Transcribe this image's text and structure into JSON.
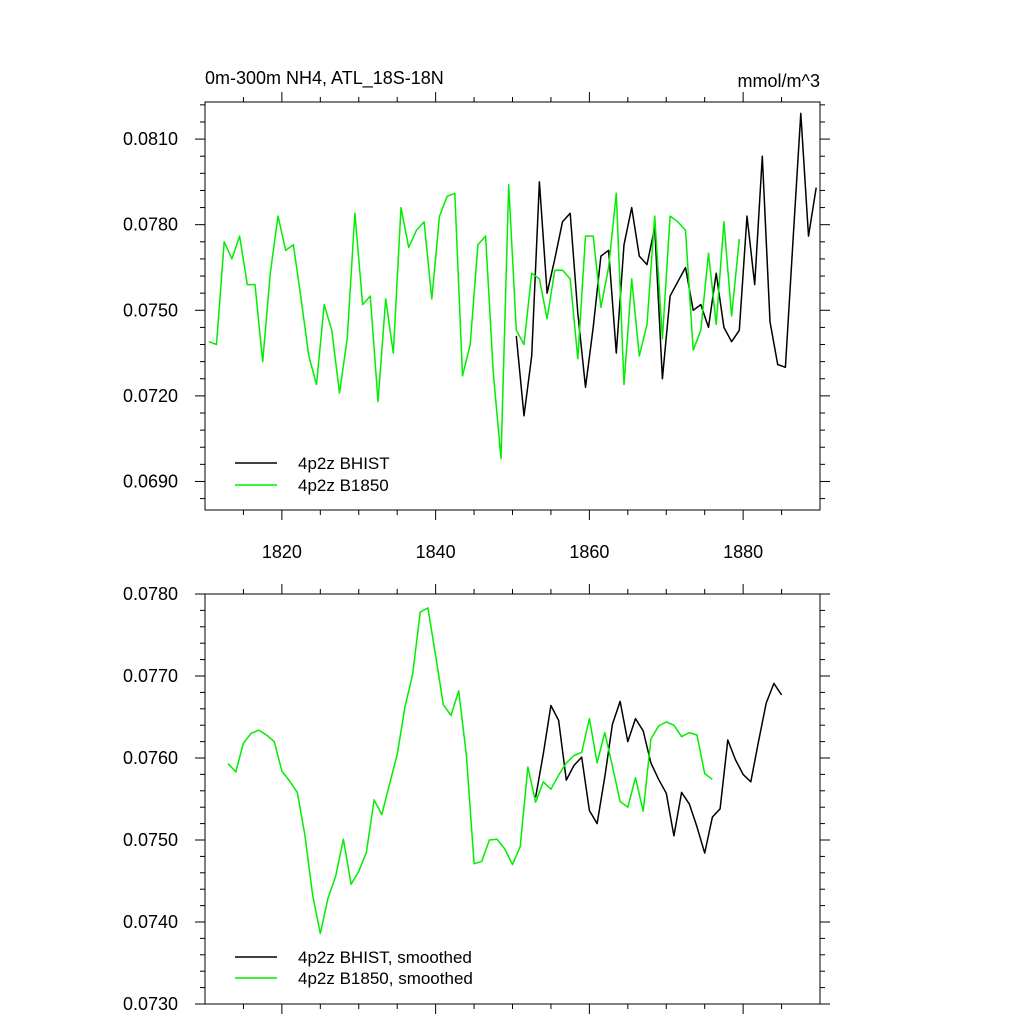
{
  "colors": {
    "bhist": "#000000",
    "b1850": "#00ee00"
  },
  "chart_data": [
    {
      "type": "line",
      "title": "0m-300m NH4, ATL_18S-18N",
      "units": "mmol/m^3",
      "xlim": [
        1810,
        1890
      ],
      "ylim": [
        0.068,
        0.0823
      ],
      "x_ticks": [
        1820,
        1840,
        1860,
        1880
      ],
      "y_ticks": [
        0.069,
        0.072,
        0.075,
        0.078,
        0.081
      ],
      "x_tick_labels": [
        "1820",
        "1840",
        "1860",
        "1880"
      ],
      "y_tick_labels": [
        "0.0690",
        "0.0720",
        "0.0750",
        "0.0780",
        "0.0810"
      ],
      "legend_position": "bottom-left",
      "series": [
        {
          "name": "4p2z BHIST",
          "color": "#000000",
          "x_start": 1850.5,
          "values": [
            0.0741,
            0.0713,
            0.0734,
            0.0795,
            0.0756,
            0.0768,
            0.0781,
            0.0784,
            0.0749,
            0.0723,
            0.0744,
            0.0769,
            0.0771,
            0.0735,
            0.0773,
            0.0786,
            0.0769,
            0.0766,
            0.0779,
            0.0726,
            0.0755,
            0.076,
            0.0765,
            0.075,
            0.0752,
            0.0744,
            0.0763,
            0.0744,
            0.0739,
            0.0743,
            0.0783,
            0.0759,
            0.0804,
            0.0746,
            0.0731,
            0.073,
            0.0775,
            0.0819,
            0.0776,
            0.0793
          ]
        },
        {
          "name": "4p2z B1850",
          "color": "#00ee00",
          "x_start": 1810.5,
          "values": [
            0.0739,
            0.0738,
            0.0774,
            0.0768,
            0.0776,
            0.0759,
            0.0759,
            0.0732,
            0.0763,
            0.0783,
            0.0771,
            0.0773,
            0.0754,
            0.0734,
            0.0724,
            0.0752,
            0.0743,
            0.0721,
            0.074,
            0.0784,
            0.0752,
            0.0755,
            0.0718,
            0.0754,
            0.0735,
            0.0786,
            0.0772,
            0.0778,
            0.0781,
            0.0754,
            0.0783,
            0.079,
            0.0791,
            0.0727,
            0.0738,
            0.0773,
            0.0776,
            0.0728,
            0.0698,
            0.0794,
            0.0743,
            0.0738,
            0.0763,
            0.0761,
            0.0747,
            0.0764,
            0.0764,
            0.0761,
            0.0733,
            0.0776,
            0.0776,
            0.0751,
            0.0765,
            0.0791,
            0.0724,
            0.0761,
            0.0734,
            0.0745,
            0.0783,
            0.074,
            0.0783,
            0.0781,
            0.0778,
            0.0736,
            0.0743,
            0.077,
            0.0745,
            0.0781,
            0.0748,
            0.0775
          ]
        }
      ]
    },
    {
      "type": "line",
      "title": "",
      "xlim": [
        1810,
        1890
      ],
      "ylim": [
        0.073,
        0.078
      ],
      "x_ticks": [
        1820,
        1840,
        1860,
        1880
      ],
      "y_ticks": [
        0.073,
        0.074,
        0.075,
        0.076,
        0.077,
        0.078
      ],
      "y_tick_labels": [
        "0.0730",
        "0.0740",
        "0.0750",
        "0.0760",
        "0.0770",
        "0.0780"
      ],
      "legend_position": "bottom-left",
      "series": [
        {
          "name": "4p2z BHIST, smoothed",
          "color": "#000000",
          "x_start": 1853,
          "values": [
            0.07552,
            0.07605,
            0.07664,
            0.07646,
            0.07573,
            0.07591,
            0.07601,
            0.07536,
            0.0752,
            0.07577,
            0.07641,
            0.07669,
            0.0762,
            0.07648,
            0.07633,
            0.07594,
            0.07574,
            0.07557,
            0.07505,
            0.07558,
            0.07544,
            0.07516,
            0.07484,
            0.07528,
            0.07538,
            0.07622,
            0.07598,
            0.0758,
            0.07571,
            0.0762,
            0.07667,
            0.07691,
            0.07677
          ]
        },
        {
          "name": "4p2z B1850, smoothed",
          "color": "#00ee00",
          "x_start": 1813,
          "values": [
            0.07593,
            0.07583,
            0.07618,
            0.0763,
            0.07634,
            0.07628,
            0.0762,
            0.07584,
            0.07572,
            0.07558,
            0.07506,
            0.07433,
            0.07386,
            0.07429,
            0.07456,
            0.07501,
            0.07446,
            0.07462,
            0.07485,
            0.07549,
            0.07531,
            0.07568,
            0.07604,
            0.07662,
            0.07702,
            0.07778,
            0.07783,
            0.07725,
            0.07665,
            0.07652,
            0.07682,
            0.07603,
            0.07471,
            0.07474,
            0.075,
            0.07501,
            0.07489,
            0.0747,
            0.07492,
            0.07589,
            0.07546,
            0.07571,
            0.07562,
            0.07579,
            0.07594,
            0.07603,
            0.07607,
            0.07648,
            0.07594,
            0.07631,
            0.0759,
            0.07547,
            0.0754,
            0.07576,
            0.07535,
            0.07623,
            0.07639,
            0.07644,
            0.0764,
            0.07626,
            0.07631,
            0.07628,
            0.07581,
            0.07574
          ]
        }
      ]
    }
  ]
}
